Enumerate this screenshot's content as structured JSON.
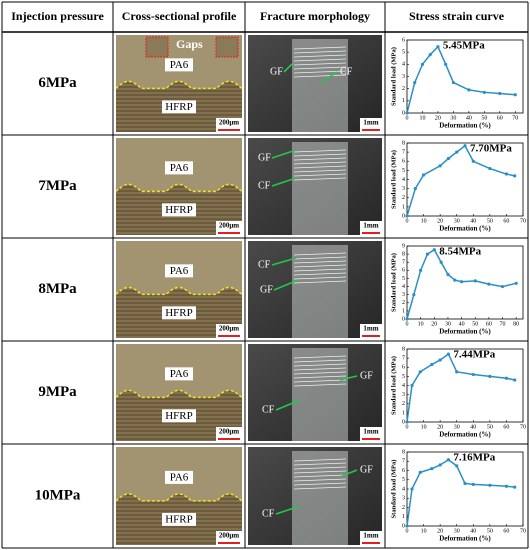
{
  "table": {
    "headers": [
      "Injection pressure",
      "Cross-sectional profile",
      "Fracture morphology",
      "Stress strain curve"
    ],
    "rows": [
      {
        "pressure": "6MPa",
        "cross_section": {
          "gaps": "Gaps",
          "pa": "PA6",
          "hfrp": "HFRP",
          "scale": "200μm"
        },
        "fracture": {
          "gf": "GF",
          "cf": "CF",
          "scale": "1mm"
        },
        "chart": {
          "type": "line",
          "ylabel": "Standard load (MPa)",
          "xlabel": "Deformation (%)",
          "peak_label": "5.45MPa",
          "color": "#2a8fc7",
          "x": [
            0,
            5,
            10,
            15,
            20,
            25,
            30,
            40,
            50,
            60,
            70
          ],
          "values": [
            0,
            2.5,
            4.0,
            4.8,
            5.45,
            4.0,
            2.5,
            1.9,
            1.7,
            1.6,
            1.5
          ],
          "xlim": [
            0,
            75
          ],
          "ylim": [
            0,
            6
          ],
          "xticks": [
            0,
            10,
            20,
            30,
            40,
            50,
            60,
            70
          ],
          "yticks": [
            0,
            1,
            2,
            3,
            4,
            5,
            6
          ]
        }
      },
      {
        "pressure": "7MPa",
        "cross_section": {
          "pa": "PA6",
          "hfrp": "HFRP",
          "scale": "200μm"
        },
        "fracture": {
          "gf": "GF",
          "cf": "CF",
          "scale": "1mm"
        },
        "chart": {
          "type": "line",
          "ylabel": "Standard load (MPa)",
          "xlabel": "Deformation (%)",
          "peak_label": "7.70MPa",
          "color": "#2a8fc7",
          "x": [
            0,
            5,
            10,
            20,
            25,
            30,
            35,
            40,
            50,
            60,
            65
          ],
          "values": [
            0,
            3.0,
            4.5,
            5.5,
            6.3,
            7.0,
            7.7,
            6.0,
            5.2,
            4.6,
            4.4
          ],
          "xlim": [
            0,
            70
          ],
          "ylim": [
            0,
            8
          ],
          "xticks": [
            0,
            10,
            20,
            30,
            40,
            50,
            60,
            70
          ],
          "yticks": [
            0,
            1,
            2,
            3,
            4,
            5,
            6,
            7,
            8
          ]
        }
      },
      {
        "pressure": "8MPa",
        "cross_section": {
          "pa": "PA6",
          "hfrp": "HFRP",
          "scale": "200μm"
        },
        "fracture": {
          "gf": "GF",
          "cf": "CF",
          "scale": "1mm"
        },
        "chart": {
          "type": "line",
          "ylabel": "Standard load (MPa)",
          "xlabel": "Deformation (%)",
          "peak_label": "8.54MPa",
          "color": "#2a8fc7",
          "x": [
            0,
            5,
            10,
            15,
            20,
            25,
            30,
            35,
            40,
            50,
            60,
            70,
            80
          ],
          "values": [
            0,
            3.0,
            6.0,
            8.0,
            8.54,
            7.0,
            5.5,
            4.8,
            4.6,
            4.7,
            4.3,
            4.0,
            4.4
          ],
          "xlim": [
            0,
            85
          ],
          "ylim": [
            0,
            9
          ],
          "xticks": [
            0,
            10,
            20,
            30,
            40,
            50,
            60,
            70,
            80
          ],
          "yticks": [
            0,
            1,
            2,
            3,
            4,
            5,
            6,
            7,
            8,
            9
          ]
        }
      },
      {
        "pressure": "9MPa",
        "cross_section": {
          "pa": "PA6",
          "hfrp": "HFRP",
          "scale": "200μm"
        },
        "fracture": {
          "gf": "GF",
          "cf": "CF",
          "scale": "1mm"
        },
        "chart": {
          "type": "line",
          "ylabel": "Standard load (MPa)",
          "xlabel": "Deformation (%)",
          "peak_label": "7.44MPa",
          "color": "#2a8fc7",
          "x": [
            0,
            3,
            8,
            15,
            20,
            25,
            30,
            40,
            50,
            60,
            65
          ],
          "values": [
            0,
            4.0,
            5.5,
            6.3,
            6.8,
            7.44,
            5.5,
            5.2,
            5.0,
            4.8,
            4.6
          ],
          "xlim": [
            0,
            70
          ],
          "ylim": [
            0,
            8
          ],
          "xticks": [
            0,
            10,
            20,
            30,
            40,
            50,
            60,
            70
          ],
          "yticks": [
            0,
            1,
            2,
            3,
            4,
            5,
            6,
            7,
            8
          ]
        }
      },
      {
        "pressure": "10MPa",
        "cross_section": {
          "pa": "PA6",
          "hfrp": "HFRP",
          "scale": "200μm"
        },
        "fracture": {
          "gf": "GF",
          "cf": "CF",
          "scale": "1mm"
        },
        "chart": {
          "type": "line",
          "ylabel": "Standard load (MPa)",
          "xlabel": "Deformation (%)",
          "peak_label": "7.16MPa",
          "color": "#2a8fc7",
          "x": [
            0,
            3,
            8,
            15,
            20,
            25,
            30,
            35,
            40,
            50,
            60,
            65
          ],
          "values": [
            0,
            4.0,
            5.8,
            6.2,
            6.6,
            7.16,
            6.5,
            4.6,
            4.5,
            4.4,
            4.3,
            4.2
          ],
          "xlim": [
            0,
            70
          ],
          "ylim": [
            0,
            8
          ],
          "xticks": [
            0,
            10,
            20,
            30,
            40,
            50,
            60,
            70
          ],
          "yticks": [
            0,
            1,
            2,
            3,
            4,
            5,
            6,
            7,
            8
          ]
        }
      }
    ]
  }
}
